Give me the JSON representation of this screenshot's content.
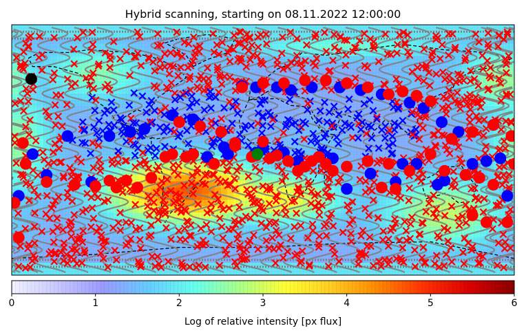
{
  "chart_data": {
    "type": "heatmap",
    "title": "Hybrid scanning, starting on 08.11.2022 12:00:00",
    "colorbar": {
      "label": "Log of relative intensity [px flux]",
      "range": [
        0,
        6
      ],
      "ticks": [
        "0",
        "1",
        "2",
        "3",
        "4",
        "5",
        "6"
      ],
      "colormap": [
        "#f2f2ff",
        "#c8c8ff",
        "#9a9aff",
        "#66ccff",
        "#66ffee",
        "#aaff88",
        "#ffff33",
        "#ffcc22",
        "#ff8800",
        "#ff3300",
        "#dd0000",
        "#880000"
      ]
    },
    "map": {
      "projection": "equirectangular",
      "lon_range": [
        -180,
        180
      ],
      "lat_range": [
        -90,
        90
      ],
      "intensity_blobs": [
        {
          "lon": -55,
          "lat": -30,
          "level": 4.7,
          "spread_lon": 55,
          "spread_lat": 22
        },
        {
          "lon": 10,
          "lat": -35,
          "level": 3.4,
          "spread_lon": 45,
          "spread_lat": 18
        },
        {
          "lon": 130,
          "lat": -45,
          "level": 2.9,
          "spread_lon": 45,
          "spread_lat": 25
        },
        {
          "lon": -175,
          "lat": 5,
          "level": 2.6,
          "spread_lon": 25,
          "spread_lat": 40
        },
        {
          "lon": 170,
          "lat": 50,
          "level": 2.7,
          "spread_lon": 30,
          "spread_lat": 25
        },
        {
          "lon": -120,
          "lat": 55,
          "level": 2.5,
          "spread_lon": 40,
          "spread_lat": 20
        },
        {
          "lon": 60,
          "lat": 75,
          "level": 2.3,
          "spread_lon": 90,
          "spread_lat": 10
        }
      ],
      "background_level": 1.3,
      "marker_series": [
        {
          "marker": "x",
          "color": "#ff0000"
        },
        {
          "marker": "x",
          "color": "#0000ff"
        },
        {
          "marker": "circle",
          "color": "#ff0000"
        },
        {
          "marker": "circle",
          "color": "#0000ff"
        }
      ],
      "track_color": "#808080",
      "special_points": [
        {
          "lon": -166,
          "lat": 51,
          "color": "#000000"
        },
        {
          "lon": -4,
          "lat": -3,
          "color": "#008000"
        }
      ],
      "red_circles": [
        [
          -60,
          20
        ],
        [
          -45,
          17
        ],
        [
          -30,
          13
        ],
        [
          -20,
          3
        ],
        [
          -8,
          -5
        ],
        [
          5,
          -6
        ],
        [
          18,
          -8
        ],
        [
          30,
          -12
        ],
        [
          45,
          -10
        ],
        [
          60,
          -12
        ],
        [
          75,
          -8
        ],
        [
          90,
          -10
        ],
        [
          105,
          -15
        ],
        [
          120,
          -3
        ],
        [
          135,
          8
        ],
        [
          150,
          13
        ],
        [
          165,
          18
        ],
        [
          178,
          10
        ],
        [
          -170,
          -10
        ],
        [
          -155,
          -23
        ],
        [
          -135,
          -25
        ],
        [
          -120,
          -26
        ],
        [
          -105,
          -27
        ],
        [
          -90,
          -27
        ],
        [
          -80,
          -20
        ],
        [
          -65,
          -3
        ],
        [
          -50,
          -3
        ],
        [
          -35,
          -10
        ],
        [
          -20,
          5
        ],
        [
          -15,
          45
        ],
        [
          0,
          48
        ],
        [
          15,
          48
        ],
        [
          30,
          50
        ],
        [
          45,
          50
        ],
        [
          60,
          48
        ],
        [
          75,
          45
        ],
        [
          90,
          40
        ],
        [
          100,
          42
        ],
        [
          110,
          39
        ],
        [
          120,
          35
        ],
        [
          -178,
          -38
        ],
        [
          -175,
          -63
        ],
        [
          150,
          -47
        ],
        [
          160,
          -52
        ],
        [
          175,
          -52
        ],
        [
          180,
          -10
        ],
        [
          -172,
          5
        ],
        [
          -98,
          -22
        ],
        [
          -110,
          -22
        ],
        [
          -55,
          -5
        ],
        [
          -70,
          -5
        ],
        [
          -5,
          -4
        ],
        [
          10,
          -4
        ],
        [
          25,
          -15
        ],
        [
          40,
          -5
        ],
        [
          50,
          -15
        ],
        [
          85,
          -27
        ],
        [
          95,
          -28
        ],
        [
          130,
          -15
        ],
        [
          145,
          -18
        ],
        [
          155,
          -20
        ],
        [
          165,
          -25
        ],
        [
          0,
          6
        ],
        [
          35,
          -8
        ]
      ],
      "blue_circles": [
        [
          -155,
          -18
        ],
        [
          -175,
          -33
        ],
        [
          -165,
          -3
        ],
        [
          -140,
          10
        ],
        [
          -123,
          -23
        ],
        [
          -110,
          10
        ],
        [
          -95,
          13
        ],
        [
          -85,
          15
        ],
        [
          -65,
          25
        ],
        [
          -5,
          -2
        ],
        [
          15,
          -2
        ],
        [
          25,
          -8
        ],
        [
          50,
          -6
        ],
        [
          -25,
          -3
        ],
        [
          -40,
          -5
        ],
        [
          35,
          45
        ],
        [
          55,
          45
        ],
        [
          70,
          43
        ],
        [
          85,
          40
        ],
        [
          105,
          34
        ],
        [
          115,
          30
        ],
        [
          128,
          20
        ],
        [
          140,
          13
        ],
        [
          165,
          18
        ],
        [
          175,
          -33
        ],
        [
          170,
          -6
        ],
        [
          130,
          -22
        ],
        [
          125,
          -25
        ],
        [
          110,
          -10
        ],
        [
          100,
          -10
        ],
        [
          -15,
          46
        ],
        [
          -5,
          45
        ],
        [
          10,
          45
        ],
        [
          20,
          43
        ],
        [
          -28,
          2
        ],
        [
          -50,
          22
        ],
        [
          0,
          2
        ],
        [
          40,
          -5
        ],
        [
          60,
          -28
        ],
        [
          77,
          -17
        ],
        [
          95,
          -23
        ],
        [
          150,
          -10
        ],
        [
          160,
          -8
        ]
      ]
    }
  }
}
